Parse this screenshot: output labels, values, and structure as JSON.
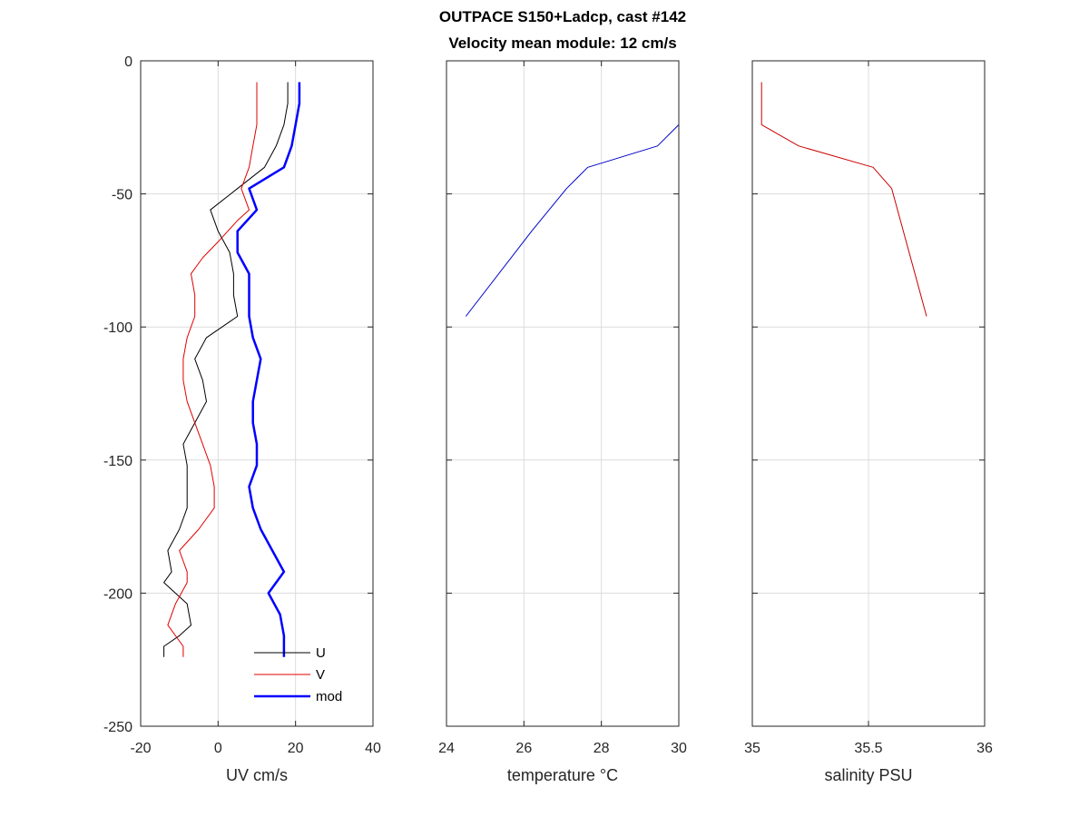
{
  "title": {
    "line1": "OUTPACE S150+Ladcp, cast #142",
    "line2": "Velocity mean module:  12 cm/s"
  },
  "chart_data": [
    {
      "type": "line",
      "xlabel": "UV cm/s",
      "ylabel": "",
      "xlim": [
        -20,
        40
      ],
      "ylim": [
        -250,
        0
      ],
      "xticks": [
        -20,
        0,
        20,
        40
      ],
      "yticks": [
        0,
        -50,
        -100,
        -150,
        -200,
        -250
      ],
      "grid": true,
      "legend_position": "bottom-right",
      "series": [
        {
          "name": "U",
          "color": "#000000",
          "width": 1,
          "points": [
            [
              18,
              -8
            ],
            [
              18,
              -16
            ],
            [
              17,
              -24
            ],
            [
              15,
              -32
            ],
            [
              12,
              -40
            ],
            [
              5,
              -48
            ],
            [
              -2,
              -56
            ],
            [
              0,
              -64
            ],
            [
              3,
              -72
            ],
            [
              4,
              -80
            ],
            [
              4,
              -88
            ],
            [
              5,
              -96
            ],
            [
              -3,
              -104
            ],
            [
              -6,
              -112
            ],
            [
              -4,
              -120
            ],
            [
              -3,
              -128
            ],
            [
              -6,
              -136
            ],
            [
              -9,
              -144
            ],
            [
              -8,
              -152
            ],
            [
              -8,
              -160
            ],
            [
              -8,
              -168
            ],
            [
              -10,
              -176
            ],
            [
              -13,
              -184
            ],
            [
              -12,
              -192
            ],
            [
              -14,
              -196
            ],
            [
              -8,
              -204
            ],
            [
              -7,
              -212
            ],
            [
              -10,
              -216
            ],
            [
              -14,
              -220
            ],
            [
              -14,
              -224
            ]
          ]
        },
        {
          "name": "V",
          "color": "#e00000",
          "width": 1,
          "points": [
            [
              10,
              -8
            ],
            [
              10,
              -16
            ],
            [
              10,
              -24
            ],
            [
              9,
              -32
            ],
            [
              8,
              -40
            ],
            [
              6,
              -48
            ],
            [
              8,
              -56
            ],
            [
              5,
              -60
            ],
            [
              0,
              -68
            ],
            [
              -4,
              -74
            ],
            [
              -7,
              -80
            ],
            [
              -6,
              -88
            ],
            [
              -6,
              -96
            ],
            [
              -8,
              -104
            ],
            [
              -9,
              -112
            ],
            [
              -9,
              -120
            ],
            [
              -8,
              -128
            ],
            [
              -6,
              -136
            ],
            [
              -4,
              -144
            ],
            [
              -2,
              -152
            ],
            [
              -1,
              -160
            ],
            [
              -1,
              -168
            ],
            [
              -5,
              -176
            ],
            [
              -10,
              -184
            ],
            [
              -8,
              -192
            ],
            [
              -8,
              -196
            ],
            [
              -11,
              -204
            ],
            [
              -13,
              -212
            ],
            [
              -9,
              -220
            ],
            [
              -9,
              -224
            ]
          ]
        },
        {
          "name": "mod",
          "color": "#0000ff",
          "width": 2.5,
          "points": [
            [
              21,
              -8
            ],
            [
              21,
              -16
            ],
            [
              20,
              -24
            ],
            [
              19,
              -32
            ],
            [
              17,
              -40
            ],
            [
              8,
              -48
            ],
            [
              10,
              -56
            ],
            [
              5,
              -64
            ],
            [
              5,
              -72
            ],
            [
              8,
              -80
            ],
            [
              8,
              -88
            ],
            [
              8,
              -96
            ],
            [
              9,
              -104
            ],
            [
              11,
              -112
            ],
            [
              10,
              -120
            ],
            [
              9,
              -128
            ],
            [
              9,
              -136
            ],
            [
              10,
              -144
            ],
            [
              10,
              -152
            ],
            [
              8,
              -160
            ],
            [
              9,
              -168
            ],
            [
              11,
              -176
            ],
            [
              14,
              -184
            ],
            [
              17,
              -192
            ],
            [
              13,
              -200
            ],
            [
              16,
              -208
            ],
            [
              17,
              -216
            ],
            [
              17,
              -224
            ]
          ]
        }
      ]
    },
    {
      "type": "line",
      "xlabel": "temperature °C",
      "ylabel": "",
      "xlim": [
        24,
        30
      ],
      "ylim": [
        -250,
        0
      ],
      "xticks": [
        24,
        26,
        28,
        30
      ],
      "grid": true,
      "series": [
        {
          "color": "#0000cc",
          "width": 1,
          "points": [
            [
              30,
              -8
            ],
            [
              30,
              -16
            ],
            [
              30,
              -24
            ],
            [
              29.45,
              -32
            ],
            [
              27.65,
              -40
            ],
            [
              27.1,
              -48
            ],
            [
              26.2,
              -64
            ],
            [
              24.5,
              -96
            ]
          ]
        }
      ]
    },
    {
      "type": "line",
      "xlabel": "salinity PSU",
      "ylabel": "",
      "xlim": [
        35,
        36
      ],
      "ylim": [
        -250,
        0
      ],
      "xticks": [
        35,
        35.5,
        36
      ],
      "grid": true,
      "series": [
        {
          "color": "#cc0000",
          "width": 1,
          "points": [
            [
              35.04,
              -8
            ],
            [
              35.04,
              -16
            ],
            [
              35.04,
              -24
            ],
            [
              35.2,
              -32
            ],
            [
              35.52,
              -40
            ],
            [
              35.6,
              -48
            ],
            [
              35.65,
              -64
            ],
            [
              35.75,
              -96
            ]
          ]
        }
      ]
    }
  ]
}
